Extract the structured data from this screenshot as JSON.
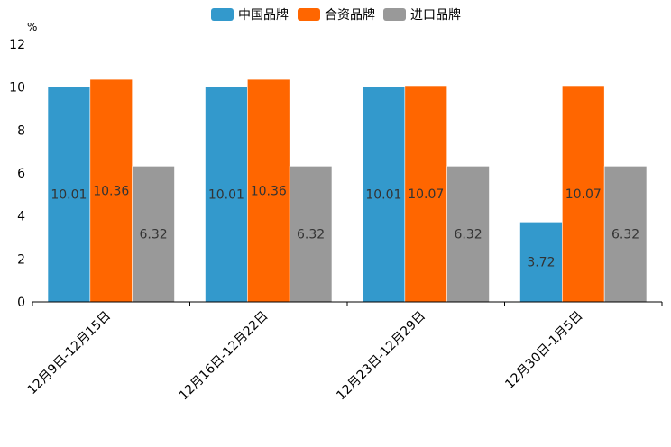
{
  "chart_data": {
    "type": "bar",
    "title": "",
    "xlabel": "",
    "ylabel": "%",
    "ylim": [
      0,
      12
    ],
    "yticks": [
      0,
      2,
      4,
      6,
      8,
      10,
      12
    ],
    "grid": false,
    "legend_position": "top-center",
    "categories": [
      "12月9日-12月15日",
      "12月16日-12月22日",
      "12月23日-12月29日",
      "12月30日-1月5日"
    ],
    "series": [
      {
        "name": "中国品牌",
        "color": "#3399CC",
        "values": [
          10.01,
          10.01,
          10.01,
          3.72
        ]
      },
      {
        "name": "合资品牌",
        "color": "#FF6600",
        "values": [
          10.36,
          10.36,
          10.07,
          10.07
        ]
      },
      {
        "name": "进口品牌",
        "color": "#999999",
        "values": [
          6.32,
          6.32,
          6.32,
          6.32
        ]
      }
    ]
  }
}
